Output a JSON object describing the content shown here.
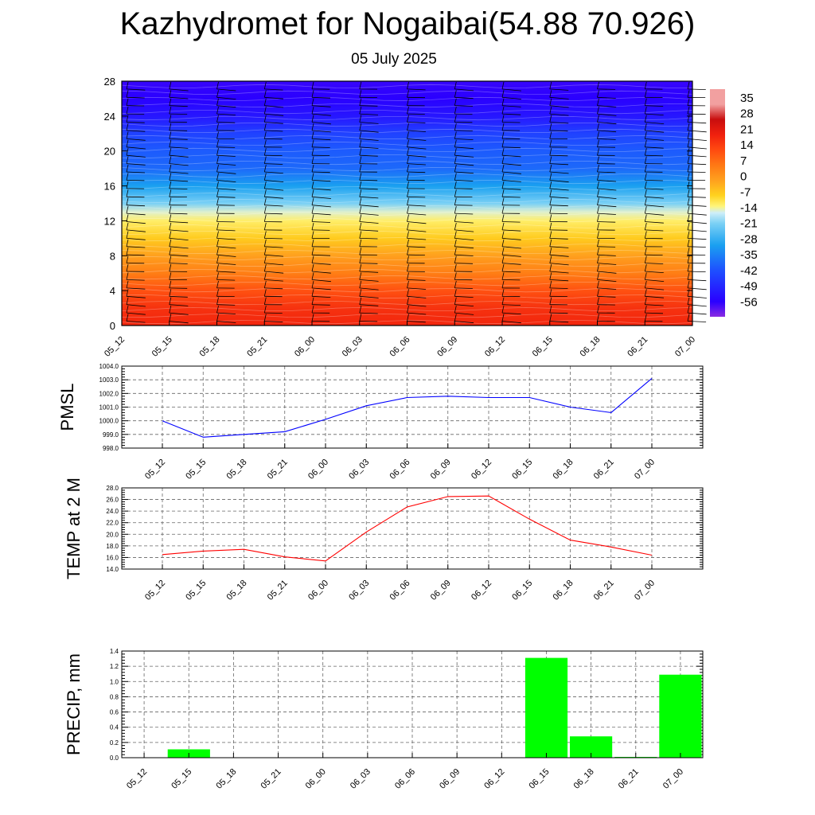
{
  "header": {
    "title": "Kazhydromet for Nogaibai(54.88 70.926)",
    "date": "05 July 2025"
  },
  "time_labels": [
    "05_12",
    "05_15",
    "05_18",
    "05_21",
    "06_00",
    "06_03",
    "06_06",
    "06_09",
    "06_12",
    "06_15",
    "06_18",
    "06_21",
    "07_00"
  ],
  "chart_data": [
    {
      "type": "heatmap",
      "y_ticks": [
        0,
        4,
        8,
        12,
        16,
        20,
        24,
        28
      ],
      "ylim": [
        0,
        28
      ],
      "colorbar": {
        "labels": [
          "35",
          "28",
          "21",
          "14",
          "7",
          "0",
          "-7",
          "-14",
          "-21",
          "-28",
          "-35",
          "-42",
          "-49",
          "-56"
        ],
        "stops": [
          {
            "value": -63,
            "color": "#8a2be2"
          },
          {
            "value": -56,
            "color": "#2a00ff"
          },
          {
            "value": -42,
            "color": "#1e4dff"
          },
          {
            "value": -30,
            "color": "#1aa0f0"
          },
          {
            "value": -20,
            "color": "#7ad0f5"
          },
          {
            "value": -15,
            "color": "#cfeef8"
          },
          {
            "value": -12,
            "color": "#fff57a"
          },
          {
            "value": -7,
            "color": "#ffd21e"
          },
          {
            "value": 0,
            "color": "#ffa01e"
          },
          {
            "value": 7,
            "color": "#ff7814"
          },
          {
            "value": 14,
            "color": "#ff4a10"
          },
          {
            "value": 21,
            "color": "#f0200e"
          },
          {
            "value": 28,
            "color": "#c80e0e"
          },
          {
            "value": 35,
            "color": "#f2a0a0"
          }
        ]
      },
      "field_profile": [
        {
          "height": 0,
          "value": 20
        },
        {
          "height": 2,
          "value": 18
        },
        {
          "height": 4,
          "value": 13
        },
        {
          "height": 6,
          "value": 6
        },
        {
          "height": 8,
          "value": 0
        },
        {
          "height": 10,
          "value": -6
        },
        {
          "height": 12,
          "value": -11
        },
        {
          "height": 13,
          "value": -14
        },
        {
          "height": 14,
          "value": -20
        },
        {
          "height": 16,
          "value": -30
        },
        {
          "height": 18,
          "value": -38
        },
        {
          "height": 20,
          "value": -40
        },
        {
          "height": 22,
          "value": -44
        },
        {
          "height": 24,
          "value": -52
        },
        {
          "height": 26,
          "value": -56
        },
        {
          "height": 28,
          "value": -57
        }
      ]
    },
    {
      "type": "line",
      "ylabel": "PMSL",
      "ylim": [
        998,
        1004
      ],
      "y_ticks": [
        "998.0",
        "999.0",
        "1000.0",
        "1001.0",
        "1002.0",
        "1003.0",
        "1004.0"
      ],
      "series": [
        {
          "color": "#0000ff",
          "values": [
            1000.0,
            998.8,
            999.0,
            999.2,
            1000.1,
            1001.1,
            1001.7,
            1001.8,
            1001.7,
            1001.7,
            1001.0,
            1000.6,
            1003.1
          ]
        }
      ]
    },
    {
      "type": "line",
      "ylabel": "TEMP at 2 M",
      "ylim": [
        14,
        28
      ],
      "y_ticks": [
        "14.0",
        "16.0",
        "18.0",
        "20.0",
        "22.0",
        "24.0",
        "26.0",
        "28.0"
      ],
      "series": [
        {
          "color": "#ff0000",
          "values": [
            16.5,
            17.1,
            17.4,
            16.1,
            15.4,
            20.4,
            24.7,
            26.5,
            26.6,
            22.6,
            19.0,
            17.8,
            16.4
          ]
        }
      ]
    },
    {
      "type": "bar",
      "ylabel": "PRECIP, mm",
      "ylim": [
        0,
        1.4
      ],
      "y_ticks": [
        "0.0",
        "0.2",
        "0.4",
        "0.6",
        "0.8",
        "1.0",
        "1.2",
        "1.4"
      ],
      "series": [
        {
          "color": "#00ff00",
          "values": [
            0,
            0.11,
            0,
            0,
            0,
            0,
            0,
            0,
            0,
            1.31,
            0.28,
            0.01,
            1.09
          ]
        }
      ]
    }
  ]
}
